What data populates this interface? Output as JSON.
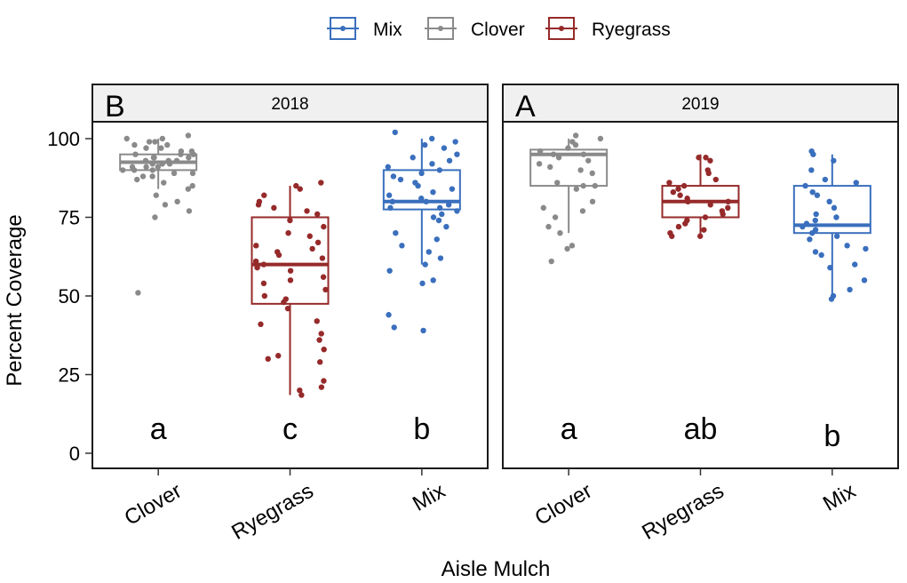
{
  "colors": {
    "Mix": "#3a6fbd",
    "Clover": "#8a8a8a",
    "Ryegrass": "#962a2a",
    "strip_bg": "#f0f0f0"
  },
  "chart_data": {
    "type": "boxplot",
    "xlabel": "Aisle Mulch",
    "ylabel": "Percent Coverage",
    "ylim": [
      -3,
      115
    ],
    "yticks": [
      0,
      25,
      50,
      75,
      100
    ],
    "legend": {
      "position": "top",
      "entries": [
        "Mix",
        "Clover",
        "Ryegrass"
      ]
    },
    "panels": [
      {
        "strip": "2018",
        "tag": "B",
        "categories": [
          "Clover",
          "Ryegrass",
          "Mix"
        ],
        "letters": [
          "a",
          "c",
          "b"
        ],
        "boxes": [
          {
            "group": "Clover",
            "q1": 90,
            "median": 92.5,
            "q3": 95,
            "whisker_low": 84,
            "whisker_high": 100,
            "points": [
              101,
              100,
              100,
              99,
              99,
              98,
              98,
              97,
              97,
              96,
              96,
              95,
              95,
              95,
              94,
              94,
              94,
              93,
              93,
              93,
              92,
              92,
              92,
              91,
              91,
              91,
              90,
              90,
              90,
              89,
              89,
              88,
              88,
              87,
              86,
              85,
              84,
              82,
              80,
              79,
              77,
              75,
              51
            ]
          },
          {
            "group": "Ryegrass",
            "q1": 47.5,
            "median": 60,
            "q3": 75,
            "whisker_low": 18.5,
            "whisker_high": 85,
            "points": [
              86,
              85,
              84,
              82,
              80,
              79,
              78,
              77,
              76,
              74,
              72,
              70,
              69,
              67,
              66,
              65,
              64,
              63,
              62,
              61,
              60,
              59,
              58,
              56,
              55,
              54,
              52,
              50,
              49,
              48,
              46,
              42,
              41,
              38,
              36,
              33,
              31,
              30,
              29,
              23,
              21,
              20,
              18.5
            ]
          },
          {
            "group": "Mix",
            "q1": 77.5,
            "median": 80,
            "q3": 90,
            "whisker_low": 60,
            "whisker_high": 100,
            "points": [
              102,
              100,
              99,
              98,
              97,
              95,
              94,
              93,
              92,
              91,
              90,
              89,
              88,
              87,
              86,
              85,
              84,
              83,
              82,
              81,
              80,
              80,
              79,
              78,
              78,
              77,
              76,
              75,
              74,
              72,
              70,
              68,
              66,
              64,
              62,
              60,
              58,
              55,
              54,
              44,
              40,
              39
            ]
          }
        ]
      },
      {
        "strip": "2019",
        "tag": "A",
        "categories": [
          "Clover",
          "Ryegrass",
          "Mix"
        ],
        "letters": [
          "a",
          "ab",
          "b"
        ],
        "boxes": [
          {
            "group": "Clover",
            "q1": 85,
            "median": 95,
            "q3": 96.5,
            "whisker_low": 70,
            "whisker_high": 100,
            "points": [
              101,
              100,
              99,
              98,
              97,
              96,
              95,
              95,
              94,
              93,
              92,
              91,
              90,
              89,
              86,
              85,
              85,
              84,
              80,
              78,
              77,
              75,
              72,
              70,
              66,
              65,
              61
            ]
          },
          {
            "group": "Ryegrass",
            "q1": 75,
            "median": 80,
            "q3": 85,
            "whisker_low": 69,
            "whisker_high": 95,
            "points": [
              94,
              94,
              93,
              90,
              89,
              87,
              86,
              85,
              84,
              83,
              82,
              81,
              80,
              80,
              79,
              78,
              77,
              76,
              75,
              74,
              73,
              72,
              71,
              70,
              69,
              69
            ]
          },
          {
            "group": "Mix",
            "q1": 70,
            "median": 72.5,
            "q3": 85,
            "whisker_low": 50,
            "whisker_high": 95,
            "points": [
              96,
              95,
              93,
              90,
              87,
              86,
              85,
              83,
              82,
              80,
              78,
              76,
              75,
              74,
              73,
              72,
              71,
              70,
              69,
              68,
              66,
              65,
              64,
              63,
              60,
              59,
              55,
              52,
              50,
              49
            ]
          }
        ]
      }
    ]
  }
}
